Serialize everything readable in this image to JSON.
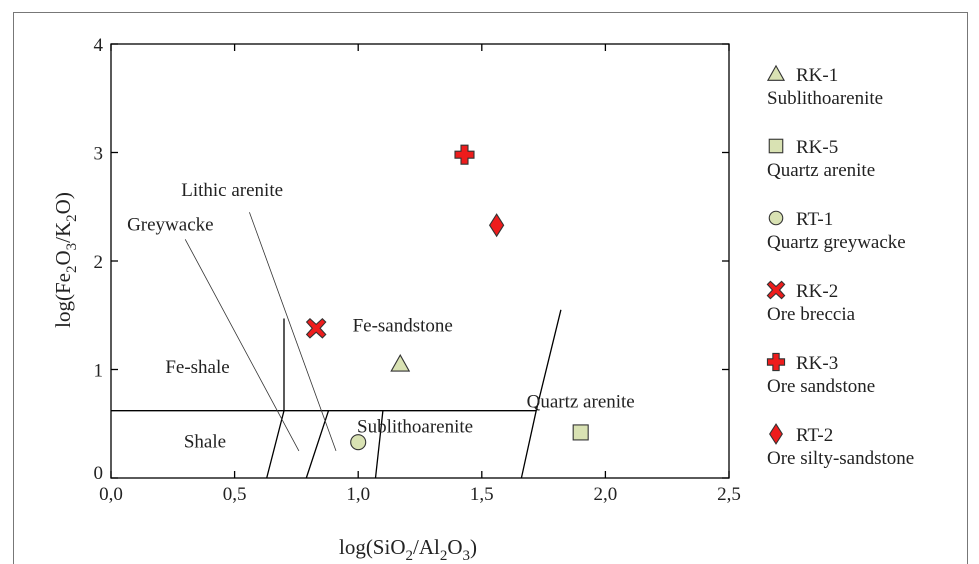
{
  "chart_data": {
    "type": "scatter",
    "xlabel": {
      "pre": "log(SiO",
      "sub1": "2",
      "mid": "/Al",
      "sub2": "2",
      "mid2": "O",
      "sub3": "3",
      "post": ")"
    },
    "ylabel": {
      "pre": "log(Fe",
      "sub1": "2",
      "mid": "O",
      "sub2": "3",
      "mid2": "/K",
      "sub3": "2",
      "post": "O)"
    },
    "xlim": [
      0,
      2.5
    ],
    "ylim": [
      0,
      4
    ],
    "x_ticks": [
      {
        "value": 0,
        "label": "0,0"
      },
      {
        "value": 0.5,
        "label": "0,5"
      },
      {
        "value": 1.0,
        "label": "1,0"
      },
      {
        "value": 1.5,
        "label": "1,5"
      },
      {
        "value": 2.0,
        "label": "2,0"
      },
      {
        "value": 2.5,
        "label": "2,5"
      }
    ],
    "y_ticks": [
      {
        "value": 0,
        "label": "0"
      },
      {
        "value": 1,
        "label": "1"
      },
      {
        "value": 2,
        "label": "2"
      },
      {
        "value": 3,
        "label": "3"
      },
      {
        "value": 4,
        "label": "4"
      }
    ],
    "field_boundaries": [
      {
        "name": "fe-line",
        "points": [
          [
            0,
            0.62
          ],
          [
            1.72,
            0.62
          ]
        ]
      },
      {
        "name": "shale-greywacke",
        "points": [
          [
            0.63,
            0
          ],
          [
            0.7,
            0.62
          ],
          [
            0.7,
            1.47
          ]
        ]
      },
      {
        "name": "greywacke-lithic",
        "points": [
          [
            0.79,
            0
          ],
          [
            0.88,
            0.62
          ]
        ]
      },
      {
        "name": "lithic-sublitho",
        "points": [
          [
            1.07,
            0
          ],
          [
            1.1,
            0.62
          ]
        ]
      },
      {
        "name": "sublitho-quartz",
        "points": [
          [
            1.66,
            0
          ],
          [
            1.72,
            0.62
          ],
          [
            1.82,
            1.55
          ]
        ]
      }
    ],
    "leader_lines": [
      {
        "name": "greywacke-leader",
        "points": [
          [
            0.3,
            2.2
          ],
          [
            0.76,
            0.25
          ]
        ]
      },
      {
        "name": "lithic-arenite-leader",
        "points": [
          [
            0.56,
            2.45
          ],
          [
            0.91,
            0.25
          ]
        ]
      }
    ],
    "region_labels": [
      {
        "text": "Shale",
        "x": 0.38,
        "y": 0.28
      },
      {
        "text": "Fe-shale",
        "x": 0.35,
        "y": 0.97
      },
      {
        "text": "Greywacke",
        "x": 0.24,
        "y": 2.28
      },
      {
        "text": "Lithic arenite",
        "x": 0.49,
        "y": 2.6
      },
      {
        "text": "Fe-sandstone",
        "x": 1.18,
        "y": 1.35
      },
      {
        "text": "Sublithoarenite",
        "x": 1.23,
        "y": 0.42
      },
      {
        "text": "Quartz arenite",
        "x": 1.9,
        "y": 0.65
      }
    ],
    "series": [
      {
        "name": "RK-1",
        "desc": "Sublithoarenite",
        "marker": "triangle",
        "color": "#d9e2b3",
        "points": [
          [
            1.17,
            1.05
          ]
        ]
      },
      {
        "name": "RK-5",
        "desc": "Quartz arenite",
        "marker": "square",
        "color": "#d9e2b3",
        "points": [
          [
            1.9,
            0.42
          ]
        ]
      },
      {
        "name": "RT-1",
        "desc": "Quartz greywacke",
        "marker": "circle",
        "color": "#d9e2b3",
        "points": [
          [
            1.0,
            0.33
          ]
        ]
      },
      {
        "name": "RK-2",
        "desc": "Ore breccia",
        "marker": "x",
        "color": "#ee1c1c",
        "points": [
          [
            0.83,
            1.38
          ]
        ]
      },
      {
        "name": "RK-3",
        "desc": "Ore sandstone",
        "marker": "plus",
        "color": "#ee1c1c",
        "points": [
          [
            1.43,
            2.98
          ]
        ]
      },
      {
        "name": "RT-2",
        "desc": "Ore silty-sandstone",
        "marker": "diamond",
        "color": "#ee1c1c",
        "points": [
          [
            1.56,
            2.33
          ]
        ]
      }
    ],
    "legend_position": "right",
    "grid": false
  }
}
